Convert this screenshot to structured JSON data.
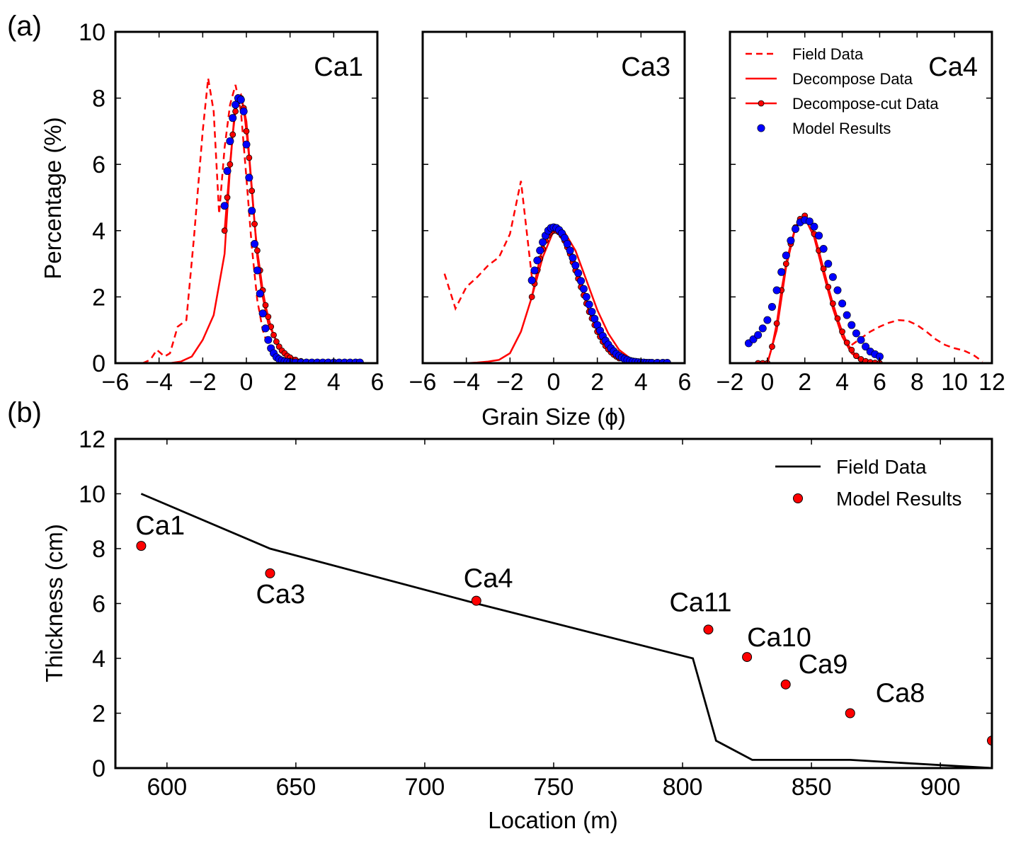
{
  "figure": {
    "panel_a_tag": "(a)",
    "panel_b_tag": "(b)"
  },
  "colors": {
    "field": "#ff0000",
    "model_a": "#0000ff",
    "model_b": "#ff0000",
    "line_b": "#000000"
  },
  "chart_data": [
    {
      "type": "line",
      "panel": "a-1",
      "annotation": "Ca1",
      "ylabel": "Percentage (%)",
      "xlim": [
        -6,
        6
      ],
      "ylim": [
        0,
        10
      ],
      "xticks": [
        "−6",
        "−4",
        "−2",
        "0",
        "2",
        "4",
        "6"
      ],
      "xtick_values": [
        -6,
        -4,
        -2,
        0,
        2,
        4,
        6
      ],
      "yticks": [
        "0",
        "2",
        "4",
        "6",
        "8",
        "10"
      ],
      "ytick_values": [
        0,
        2,
        4,
        6,
        8,
        10
      ],
      "series": [
        {
          "name": "Field Data",
          "style": "dashed",
          "x": [
            -4.75,
            -4.4,
            -4.1,
            -3.75,
            -3.5,
            -3.15,
            -2.75,
            -2.4,
            -2.0,
            -1.75,
            -1.5,
            -1.25,
            -1.0,
            -0.75,
            -0.5,
            -0.25,
            0.0,
            0.25,
            0.5,
            0.75,
            1.0,
            1.5,
            2.0
          ],
          "y": [
            0.0,
            0.1,
            0.4,
            0.2,
            0.3,
            1.1,
            1.3,
            3.8,
            7.0,
            8.6,
            7.6,
            4.5,
            6.5,
            7.8,
            8.4,
            7.6,
            5.6,
            3.5,
            1.9,
            1.0,
            0.5,
            0.15,
            0.05
          ]
        },
        {
          "name": "Decompose Data",
          "style": "solid",
          "x": [
            -3.5,
            -3.0,
            -2.5,
            -2.0,
            -1.5,
            -1.0,
            -0.75,
            -0.5,
            -0.25,
            0.0,
            0.25,
            0.5,
            0.75,
            1.0,
            1.5,
            2.0,
            2.5,
            3.0,
            4.0,
            5.0
          ],
          "y": [
            0.0,
            0.05,
            0.2,
            0.7,
            1.45,
            3.3,
            5.9,
            7.9,
            8.1,
            7.3,
            5.3,
            3.2,
            2.0,
            1.2,
            0.5,
            0.2,
            0.08,
            0.03,
            0.01,
            0.0
          ]
        },
        {
          "name": "Decompose-cut Data",
          "style": "solid-marker",
          "x": [
            -1.0,
            -0.875,
            -0.75,
            -0.625,
            -0.5,
            -0.375,
            -0.25,
            -0.125,
            0.0,
            0.125,
            0.25,
            0.375,
            0.5,
            0.625,
            0.75,
            0.875,
            1.0,
            1.125,
            1.25,
            1.375,
            1.5,
            1.625,
            1.75,
            1.875,
            2.0,
            2.25,
            2.5,
            2.75,
            3.0,
            3.5,
            4.0,
            4.5,
            5.0
          ],
          "y": [
            4.0,
            5.0,
            6.0,
            6.9,
            7.6,
            7.9,
            8.0,
            7.7,
            7.0,
            6.2,
            5.2,
            4.2,
            3.4,
            2.8,
            2.2,
            1.75,
            1.4,
            1.1,
            0.85,
            0.65,
            0.5,
            0.38,
            0.3,
            0.22,
            0.17,
            0.1,
            0.06,
            0.04,
            0.02,
            0.01,
            0.0,
            0.0,
            0.0
          ]
        },
        {
          "name": "Model Results",
          "style": "marker",
          "x": [
            -1.0,
            -0.875,
            -0.75,
            -0.625,
            -0.5,
            -0.375,
            -0.25,
            -0.125,
            0.0,
            0.125,
            0.25,
            0.375,
            0.5,
            0.625,
            0.75,
            0.875,
            1.0,
            1.125,
            1.25,
            1.375,
            1.5,
            1.625,
            1.75,
            1.875,
            2.0,
            2.25,
            2.5,
            2.75,
            3.0,
            3.25,
            3.5,
            3.75,
            4.0,
            4.25,
            4.5,
            4.75,
            5.0,
            5.2
          ],
          "y": [
            4.75,
            5.8,
            6.7,
            7.4,
            7.8,
            8.0,
            7.95,
            7.6,
            6.6,
            5.6,
            4.6,
            3.6,
            2.8,
            2.1,
            1.5,
            1.05,
            0.7,
            0.45,
            0.3,
            0.18,
            0.12,
            0.08,
            0.05,
            0.04,
            0.03,
            0.02,
            0.02,
            0.02,
            0.02,
            0.02,
            0.02,
            0.02,
            0.02,
            0.02,
            0.02,
            0.02,
            0.02,
            0.02
          ]
        }
      ]
    },
    {
      "type": "line",
      "panel": "a-2",
      "annotation": "Ca3",
      "xlabel": "Grain Size (ϕ)",
      "xlim": [
        -6,
        6
      ],
      "ylim": [
        0,
        10
      ],
      "xticks": [
        "−6",
        "−4",
        "−2",
        "0",
        "2",
        "4",
        "6"
      ],
      "xtick_values": [
        -6,
        -4,
        -2,
        0,
        2,
        4,
        6
      ],
      "ytick_values": [
        0,
        2,
        4,
        6,
        8,
        10
      ],
      "series": [
        {
          "name": "Field Data",
          "style": "dashed",
          "x": [
            -5.0,
            -4.5,
            -4.0,
            -3.5,
            -3.0,
            -2.5,
            -2.0,
            -1.5,
            -1.0,
            -0.5
          ],
          "y": [
            2.7,
            1.65,
            2.3,
            2.6,
            2.95,
            3.2,
            3.9,
            5.5,
            2.6,
            2.9
          ]
        },
        {
          "name": "Decompose Data",
          "style": "solid",
          "x": [
            -5.0,
            -4.0,
            -3.5,
            -3.0,
            -2.5,
            -2.0,
            -1.5,
            -1.0,
            -0.5,
            0.0,
            0.5,
            1.0,
            1.5,
            2.0,
            2.5,
            3.0,
            3.5,
            4.0,
            4.5,
            5.0
          ],
          "y": [
            0.0,
            0.0,
            0.02,
            0.05,
            0.1,
            0.3,
            0.95,
            2.0,
            3.2,
            4.0,
            3.95,
            3.4,
            2.5,
            1.6,
            0.9,
            0.4,
            0.15,
            0.05,
            0.02,
            0.0
          ]
        },
        {
          "name": "Decompose-cut Data",
          "style": "solid-marker",
          "x": [
            -1.0,
            -0.875,
            -0.75,
            -0.625,
            -0.5,
            -0.375,
            -0.25,
            -0.125,
            0.0,
            0.125,
            0.25,
            0.375,
            0.5,
            0.625,
            0.75,
            0.875,
            1.0,
            1.125,
            1.25,
            1.375,
            1.5,
            1.625,
            1.75,
            1.875,
            2.0,
            2.125,
            2.25,
            2.375,
            2.5,
            2.625,
            2.75,
            2.875,
            3.0,
            3.25,
            3.5,
            3.75,
            4.0,
            4.25,
            4.5
          ],
          "y": [
            2.0,
            2.4,
            2.8,
            3.15,
            3.45,
            3.7,
            3.85,
            3.95,
            4.0,
            4.0,
            3.95,
            3.85,
            3.7,
            3.5,
            3.3,
            3.05,
            2.8,
            2.55,
            2.3,
            2.05,
            1.8,
            1.55,
            1.35,
            1.15,
            0.95,
            0.8,
            0.65,
            0.52,
            0.42,
            0.33,
            0.26,
            0.2,
            0.15,
            0.09,
            0.05,
            0.03,
            0.02,
            0.01,
            0.0
          ]
        },
        {
          "name": "Model Results",
          "style": "marker",
          "x": [
            -1.0,
            -0.875,
            -0.75,
            -0.625,
            -0.5,
            -0.375,
            -0.25,
            -0.125,
            0.0,
            0.125,
            0.25,
            0.375,
            0.5,
            0.625,
            0.75,
            0.875,
            1.0,
            1.125,
            1.25,
            1.375,
            1.5,
            1.625,
            1.75,
            1.875,
            2.0,
            2.125,
            2.25,
            2.375,
            2.5,
            2.625,
            2.75,
            2.875,
            3.0,
            3.125,
            3.25,
            3.375,
            3.5,
            3.625,
            3.75,
            3.875,
            4.0,
            4.125,
            4.25,
            4.375,
            4.5,
            4.75,
            5.0,
            5.2
          ],
          "y": [
            2.5,
            2.8,
            3.1,
            3.4,
            3.65,
            3.85,
            4.0,
            4.08,
            4.1,
            4.08,
            4.02,
            3.92,
            3.78,
            3.6,
            3.4,
            3.18,
            2.95,
            2.72,
            2.48,
            2.24,
            2.0,
            1.77,
            1.55,
            1.34,
            1.15,
            0.98,
            0.82,
            0.68,
            0.56,
            0.45,
            0.36,
            0.28,
            0.22,
            0.17,
            0.13,
            0.1,
            0.07,
            0.05,
            0.04,
            0.03,
            0.02,
            0.02,
            0.01,
            0.01,
            0.01,
            0.01,
            0.01,
            0.01
          ]
        }
      ]
    },
    {
      "type": "line",
      "panel": "a-3",
      "annotation": "Ca4",
      "xlim": [
        -2,
        12
      ],
      "ylim": [
        0,
        10
      ],
      "xticks": [
        "−2",
        "0",
        "2",
        "4",
        "6",
        "8",
        "10",
        "12"
      ],
      "xtick_values": [
        -2,
        0,
        2,
        4,
        6,
        8,
        10,
        12
      ],
      "ytick_values": [
        0,
        2,
        4,
        6,
        8,
        10
      ],
      "legend": {
        "location": "top-left",
        "entries": [
          "Field Data",
          "Decompose Data",
          "Decompose-cut Data",
          "Model Results"
        ]
      },
      "series": [
        {
          "name": "Field Data",
          "style": "dashed",
          "x": [
            4.5,
            5.0,
            5.5,
            6.0,
            6.5,
            7.0,
            7.5,
            8.0,
            8.5,
            9.0,
            9.5,
            10.0,
            10.5,
            11.0,
            11.5
          ],
          "y": [
            0.55,
            0.75,
            0.95,
            1.1,
            1.22,
            1.3,
            1.28,
            1.15,
            0.95,
            0.72,
            0.55,
            0.45,
            0.38,
            0.25,
            0.05
          ]
        },
        {
          "name": "Decompose Data",
          "style": "solid",
          "x": [
            -0.5,
            0.0,
            0.5,
            1.0,
            1.5,
            2.0,
            2.5,
            3.0,
            3.5,
            4.0,
            4.5,
            5.0,
            5.5,
            6.0
          ],
          "y": [
            0.0,
            0.0,
            1.0,
            2.9,
            4.1,
            4.4,
            3.8,
            2.7,
            1.65,
            0.8,
            0.3,
            0.08,
            0.02,
            0.0
          ]
        },
        {
          "name": "Decompose-cut Data",
          "style": "solid-marker",
          "x": [
            -0.5,
            -0.25,
            0.0,
            0.25,
            0.5,
            0.75,
            1.0,
            1.25,
            1.5,
            1.75,
            2.0,
            2.25,
            2.5,
            2.75,
            3.0,
            3.25,
            3.5,
            3.75,
            4.0,
            4.25,
            4.5,
            4.75,
            5.0,
            5.25,
            5.5,
            5.75,
            6.0
          ],
          "y": [
            0.0,
            0.0,
            0.0,
            0.5,
            1.2,
            2.2,
            3.0,
            3.6,
            4.1,
            4.35,
            4.45,
            4.3,
            3.9,
            3.4,
            2.85,
            2.3,
            1.8,
            1.35,
            0.95,
            0.62,
            0.4,
            0.22,
            0.12,
            0.06,
            0.03,
            0.01,
            0.0
          ]
        },
        {
          "name": "Model Results",
          "style": "marker",
          "x": [
            -1.0,
            -0.75,
            -0.5,
            -0.25,
            0.0,
            0.25,
            0.5,
            0.75,
            1.0,
            1.25,
            1.5,
            1.75,
            2.0,
            2.25,
            2.5,
            2.75,
            3.0,
            3.25,
            3.5,
            3.75,
            4.0,
            4.25,
            4.5,
            4.75,
            5.0,
            5.25,
            5.5,
            5.75,
            6.0
          ],
          "y": [
            0.6,
            0.72,
            0.85,
            1.05,
            1.3,
            1.7,
            2.2,
            2.75,
            3.25,
            3.7,
            4.05,
            4.25,
            4.32,
            4.28,
            4.12,
            3.85,
            3.45,
            3.0,
            2.6,
            2.2,
            1.8,
            1.45,
            1.15,
            0.9,
            0.7,
            0.5,
            0.35,
            0.27,
            0.2
          ]
        }
      ]
    },
    {
      "type": "line",
      "panel": "b",
      "xlabel": "Location (m)",
      "ylabel": "Thickness (cm)",
      "xlim": [
        580,
        920
      ],
      "ylim": [
        0,
        12
      ],
      "xticks": [
        "600",
        "650",
        "700",
        "750",
        "800",
        "850",
        "900"
      ],
      "xtick_values": [
        600,
        650,
        700,
        750,
        800,
        850,
        900
      ],
      "yticks": [
        "0",
        "2",
        "4",
        "6",
        "8",
        "10",
        "12"
      ],
      "ytick_values": [
        0,
        2,
        4,
        6,
        8,
        10,
        12
      ],
      "legend": {
        "location": "top-right",
        "entries": [
          "Field Data",
          "Model Results"
        ]
      },
      "series": [
        {
          "name": "Field Data",
          "style": "solid",
          "x": [
            590,
            640,
            720,
            804,
            813,
            827,
            865,
            920
          ],
          "y": [
            10.0,
            8.0,
            6.0,
            4.0,
            1.0,
            0.3,
            0.3,
            0.0
          ]
        },
        {
          "name": "Model Results",
          "style": "marker",
          "x": [
            590,
            640,
            720,
            810,
            825,
            840,
            865,
            920
          ],
          "y": [
            8.1,
            7.1,
            6.1,
            5.05,
            4.05,
            3.05,
            2.0,
            1.0
          ],
          "labels": [
            "Ca1",
            "Ca3",
            "Ca4",
            "Ca11",
            "Ca10",
            "Ca9",
            "Ca8",
            ""
          ]
        }
      ]
    }
  ]
}
